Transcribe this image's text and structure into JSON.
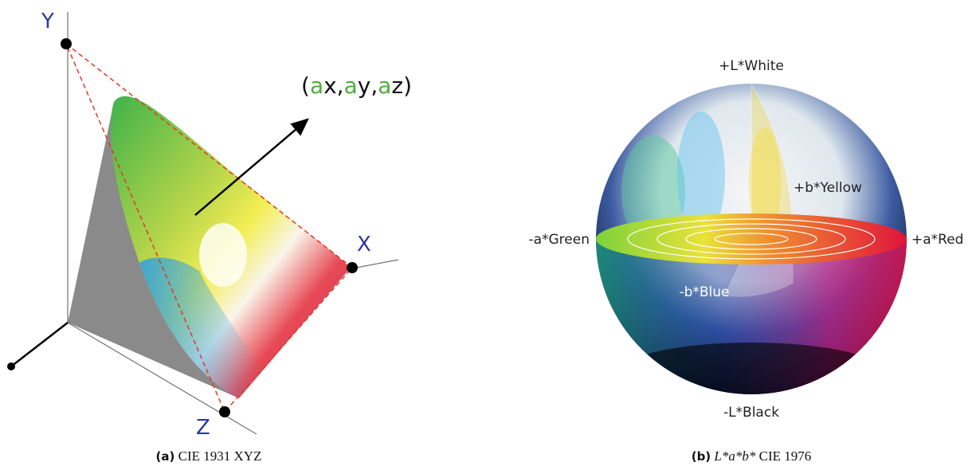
{
  "figure_a": {
    "axis_labels": {
      "y": "Y",
      "x": "X",
      "z": "Z"
    },
    "vector_label": [
      "(",
      "a",
      "x,",
      "a",
      "y,",
      "a",
      "z)"
    ],
    "caption": {
      "tag": "(a)",
      "text": "CIE 1931 XYZ"
    }
  },
  "figure_b": {
    "labels": {
      "white": "+L*White",
      "yellow": "+b*Yellow",
      "green": "-a*Green",
      "red": "+a*Red",
      "blue": "-b*Blue",
      "black": "-L*Black"
    },
    "caption": {
      "tag": "(b)",
      "math": "L*a*b*",
      "text": "CIE 1976"
    }
  }
}
